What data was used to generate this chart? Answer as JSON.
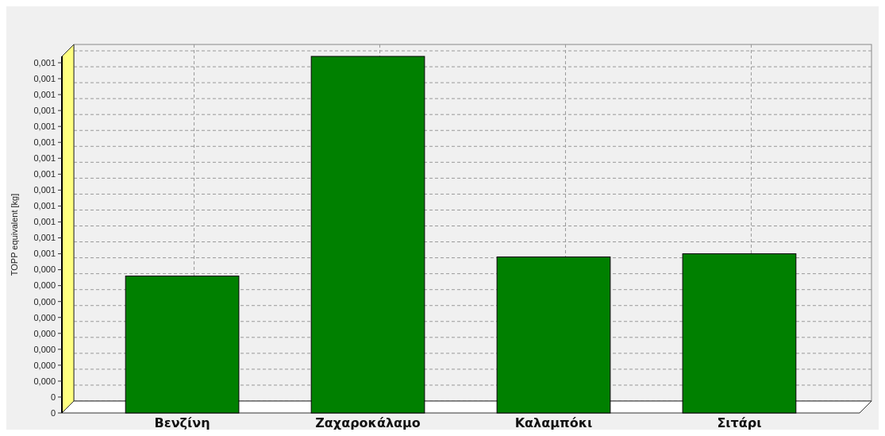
{
  "chart_data": {
    "type": "bar",
    "ylabel": "TOPP equivalent [kg]",
    "categories": [
      "Βενζίνη",
      "Ζαχαροκάλαμο",
      "Καλαμπόκι",
      "Σιτάρι"
    ],
    "values": [
      0.00043,
      0.00112,
      0.00049,
      0.0005
    ],
    "color": "#008000",
    "ylim": [
      0,
      0.00112
    ],
    "yticks": [
      {
        "value": 0,
        "label": "0"
      },
      {
        "value": 5e-05,
        "label": "0"
      },
      {
        "value": 0.0001,
        "label": "0,000"
      },
      {
        "value": 0.00015,
        "label": "0,000"
      },
      {
        "value": 0.0002,
        "label": "0,000"
      },
      {
        "value": 0.00025,
        "label": "0,000"
      },
      {
        "value": 0.0003,
        "label": "0,000"
      },
      {
        "value": 0.00035,
        "label": "0,000"
      },
      {
        "value": 0.0004,
        "label": "0,000"
      },
      {
        "value": 0.00045,
        "label": "0,000"
      },
      {
        "value": 0.0005,
        "label": "0,001"
      },
      {
        "value": 0.00055,
        "label": "0,001"
      },
      {
        "value": 0.0006,
        "label": "0,001"
      },
      {
        "value": 0.00065,
        "label": "0,001"
      },
      {
        "value": 0.0007,
        "label": "0,001"
      },
      {
        "value": 0.00075,
        "label": "0,001"
      },
      {
        "value": 0.0008,
        "label": "0,001"
      },
      {
        "value": 0.00085,
        "label": "0,001"
      },
      {
        "value": 0.0009,
        "label": "0,001"
      },
      {
        "value": 0.00095,
        "label": "0,001"
      },
      {
        "value": 0.001,
        "label": "0,001"
      },
      {
        "value": 0.00105,
        "label": "0,001"
      },
      {
        "value": 0.0011,
        "label": "0,001"
      }
    ],
    "grid": true
  }
}
